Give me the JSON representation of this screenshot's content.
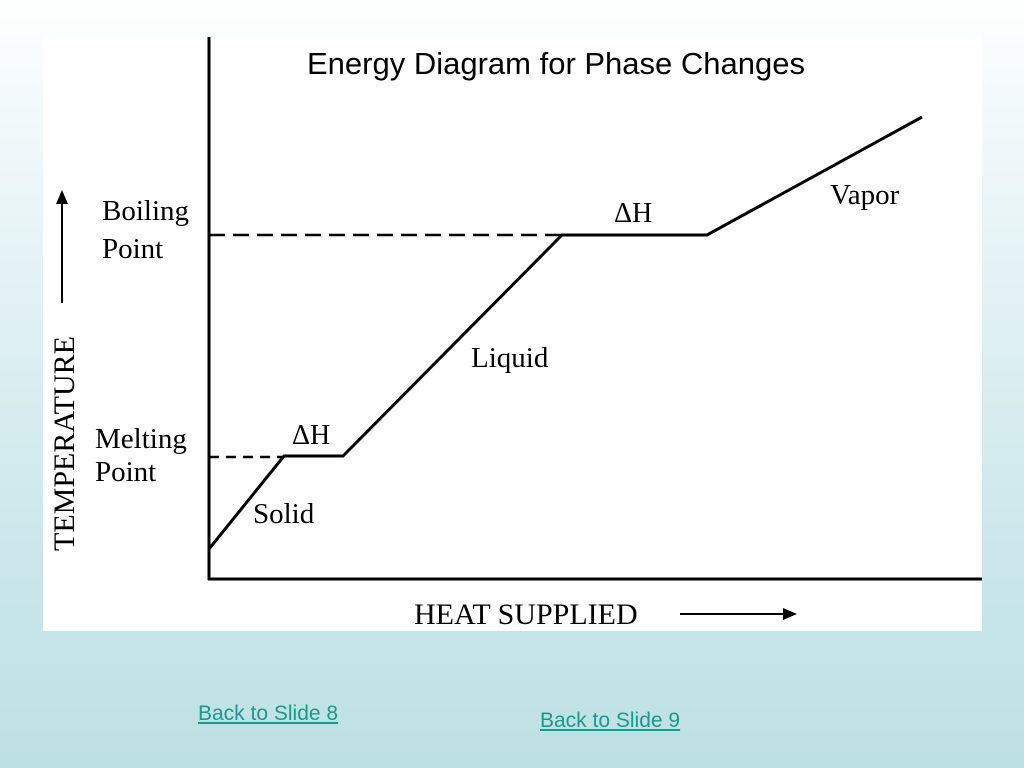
{
  "slide": {
    "title": "Energy Diagram for Phase Changes",
    "background_colors": [
      "#ffffff",
      "#bde0e5"
    ],
    "link_color": "#1a9a8a"
  },
  "diagram": {
    "y_axis_label": "TEMPERATURE",
    "x_axis_label": "HEAT SUPPLIED",
    "boiling_point_line1": "Boiling",
    "boiling_point_line2": "Point",
    "melting_point_line1": "Melting",
    "melting_point_line2": "Point",
    "phase_solid": "Solid",
    "phase_liquid": "Liquid",
    "phase_vapor": "Vapor",
    "delta_h_melting": "ΔH",
    "delta_h_boiling": "ΔH"
  },
  "links": {
    "back_to_slide_8": "Back to Slide 8",
    "back_to_slide_9": "Back to Slide 9"
  }
}
